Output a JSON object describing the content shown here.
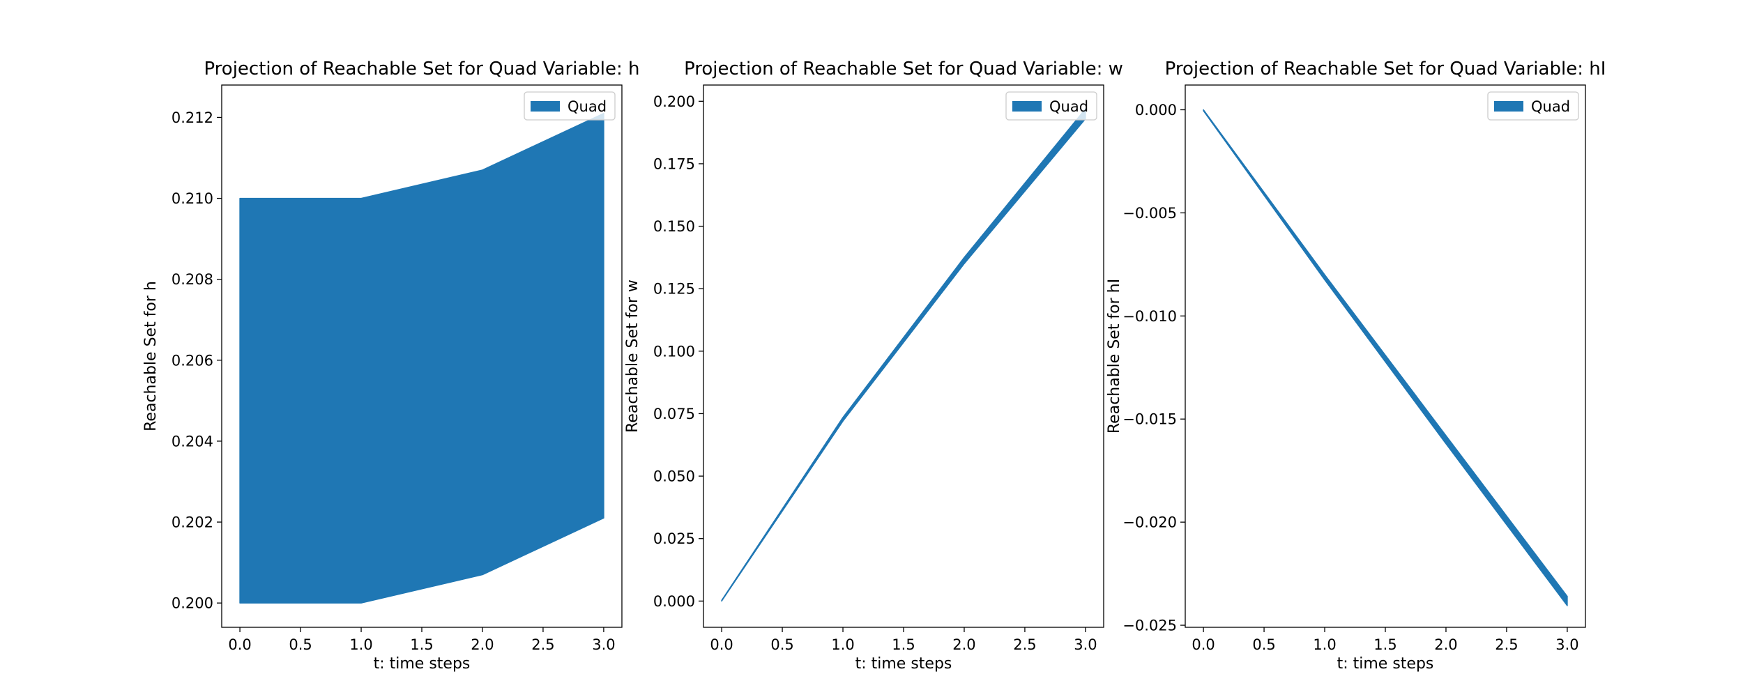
{
  "figure": {
    "background": "#ffffff",
    "fill_color": "#1f77b4"
  },
  "chart_data": [
    {
      "type": "area",
      "title": "Projection of Reachable Set for Quad Variable: h",
      "xlabel": "t: time steps",
      "ylabel": "Reachable Set for h",
      "xlim": [
        -0.15,
        3.15
      ],
      "ylim": [
        0.1994,
        0.2128
      ],
      "xticks": [
        0.0,
        0.5,
        1.0,
        1.5,
        2.0,
        2.5,
        3.0
      ],
      "xtick_labels": [
        "0.0",
        "0.5",
        "1.0",
        "1.5",
        "2.0",
        "2.5",
        "3.0"
      ],
      "yticks": [
        0.2,
        0.202,
        0.204,
        0.206,
        0.208,
        0.21,
        0.212
      ],
      "ytick_labels": [
        "0.200",
        "0.202",
        "0.204",
        "0.206",
        "0.208",
        "0.210",
        "0.212"
      ],
      "legend": {
        "label": "Quad",
        "position": "upper right"
      },
      "series": [
        {
          "name": "Quad",
          "x": [
            0,
            1,
            2,
            3
          ],
          "lower": [
            0.2,
            0.2,
            0.2007,
            0.2021
          ],
          "upper": [
            0.21,
            0.21,
            0.2107,
            0.2121
          ]
        }
      ]
    },
    {
      "type": "area",
      "title": "Projection of Reachable Set for Quad Variable: w",
      "xlabel": "t: time steps",
      "ylabel": "Reachable Set for w",
      "xlim": [
        -0.15,
        3.15
      ],
      "ylim": [
        -0.0105,
        0.2065
      ],
      "xticks": [
        0.0,
        0.5,
        1.0,
        1.5,
        2.0,
        2.5,
        3.0
      ],
      "xtick_labels": [
        "0.0",
        "0.5",
        "1.0",
        "1.5",
        "2.0",
        "2.5",
        "3.0"
      ],
      "yticks": [
        0.0,
        0.025,
        0.05,
        0.075,
        0.1,
        0.125,
        0.15,
        0.175,
        0.2
      ],
      "ytick_labels": [
        "0.000",
        "0.025",
        "0.050",
        "0.075",
        "0.100",
        "0.125",
        "0.150",
        "0.175",
        "0.200"
      ],
      "legend": {
        "label": "Quad",
        "position": "upper right"
      },
      "series": [
        {
          "name": "Quad",
          "x": [
            0,
            1,
            2,
            3
          ],
          "lower": [
            0.0,
            0.072,
            0.135,
            0.193
          ],
          "upper": [
            0.0003,
            0.0735,
            0.1375,
            0.197
          ]
        }
      ]
    },
    {
      "type": "area",
      "title": "Projection of Reachable Set for Quad Variable: hI",
      "xlabel": "t: time steps",
      "ylabel": "Reachable Set for hI",
      "xlim": [
        -0.15,
        3.15
      ],
      "ylim": [
        -0.0251,
        0.0012
      ],
      "xticks": [
        0.0,
        0.5,
        1.0,
        1.5,
        2.0,
        2.5,
        3.0
      ],
      "xtick_labels": [
        "0.0",
        "0.5",
        "1.0",
        "1.5",
        "2.0",
        "2.5",
        "3.0"
      ],
      "yticks": [
        0.0,
        -0.005,
        -0.01,
        -0.015,
        -0.02,
        -0.025
      ],
      "ytick_labels": [
        "0.000",
        "−0.005",
        "−0.010",
        "−0.015",
        "−0.020",
        "−0.025"
      ],
      "legend": {
        "label": "Quad",
        "position": "upper right"
      },
      "series": [
        {
          "name": "Quad",
          "x": [
            0,
            1,
            2,
            3
          ],
          "lower": [
            -5e-05,
            -0.00825,
            -0.0162,
            -0.02405
          ],
          "upper": [
            0.0,
            -0.008,
            -0.0158,
            -0.0236
          ]
        }
      ]
    }
  ]
}
